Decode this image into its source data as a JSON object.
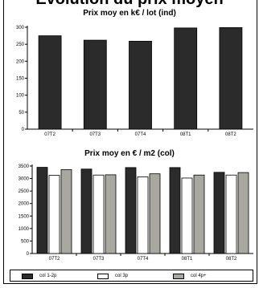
{
  "header": {
    "title": "Evolution du prix moyen"
  },
  "colors": {
    "col_1_2p": "#2b2b2b",
    "col_3p": "#ffffff",
    "col_4p": "#a8a8a0",
    "ind": "#2b2b2b"
  },
  "chart_data": [
    {
      "type": "bar",
      "title": "Prix moy en k€ / lot (ind)",
      "categories": [
        "07T2",
        "07T3",
        "07T4",
        "08T1",
        "08T2"
      ],
      "values": [
        275,
        262,
        259,
        298,
        299
      ],
      "ylim": [
        0,
        300
      ],
      "yticks": [
        "0",
        "50",
        "100",
        "150",
        "200",
        "250",
        "300"
      ],
      "grid": false,
      "xlabel": "",
      "ylabel": ""
    },
    {
      "type": "bar",
      "title": "Prix moy en € / m2 (col)",
      "categories": [
        "07T2",
        "07T3",
        "07T4",
        "08T1",
        "08T2"
      ],
      "series": [
        {
          "name": "col 1-2p",
          "values": [
            3450,
            3380,
            3440,
            3440,
            3250
          ]
        },
        {
          "name": "col 3p",
          "values": [
            3130,
            3140,
            3070,
            3020,
            3140
          ]
        },
        {
          "name": "col 4p+",
          "values": [
            3360,
            3150,
            3190,
            3140,
            3240
          ]
        }
      ],
      "ylim": [
        0,
        3500
      ],
      "yticks": [
        "0",
        "500",
        "1000",
        "1500",
        "2000",
        "2500",
        "3000",
        "3500"
      ],
      "grid": false,
      "legend": "bottom",
      "xlabel": "",
      "ylabel": ""
    }
  ]
}
